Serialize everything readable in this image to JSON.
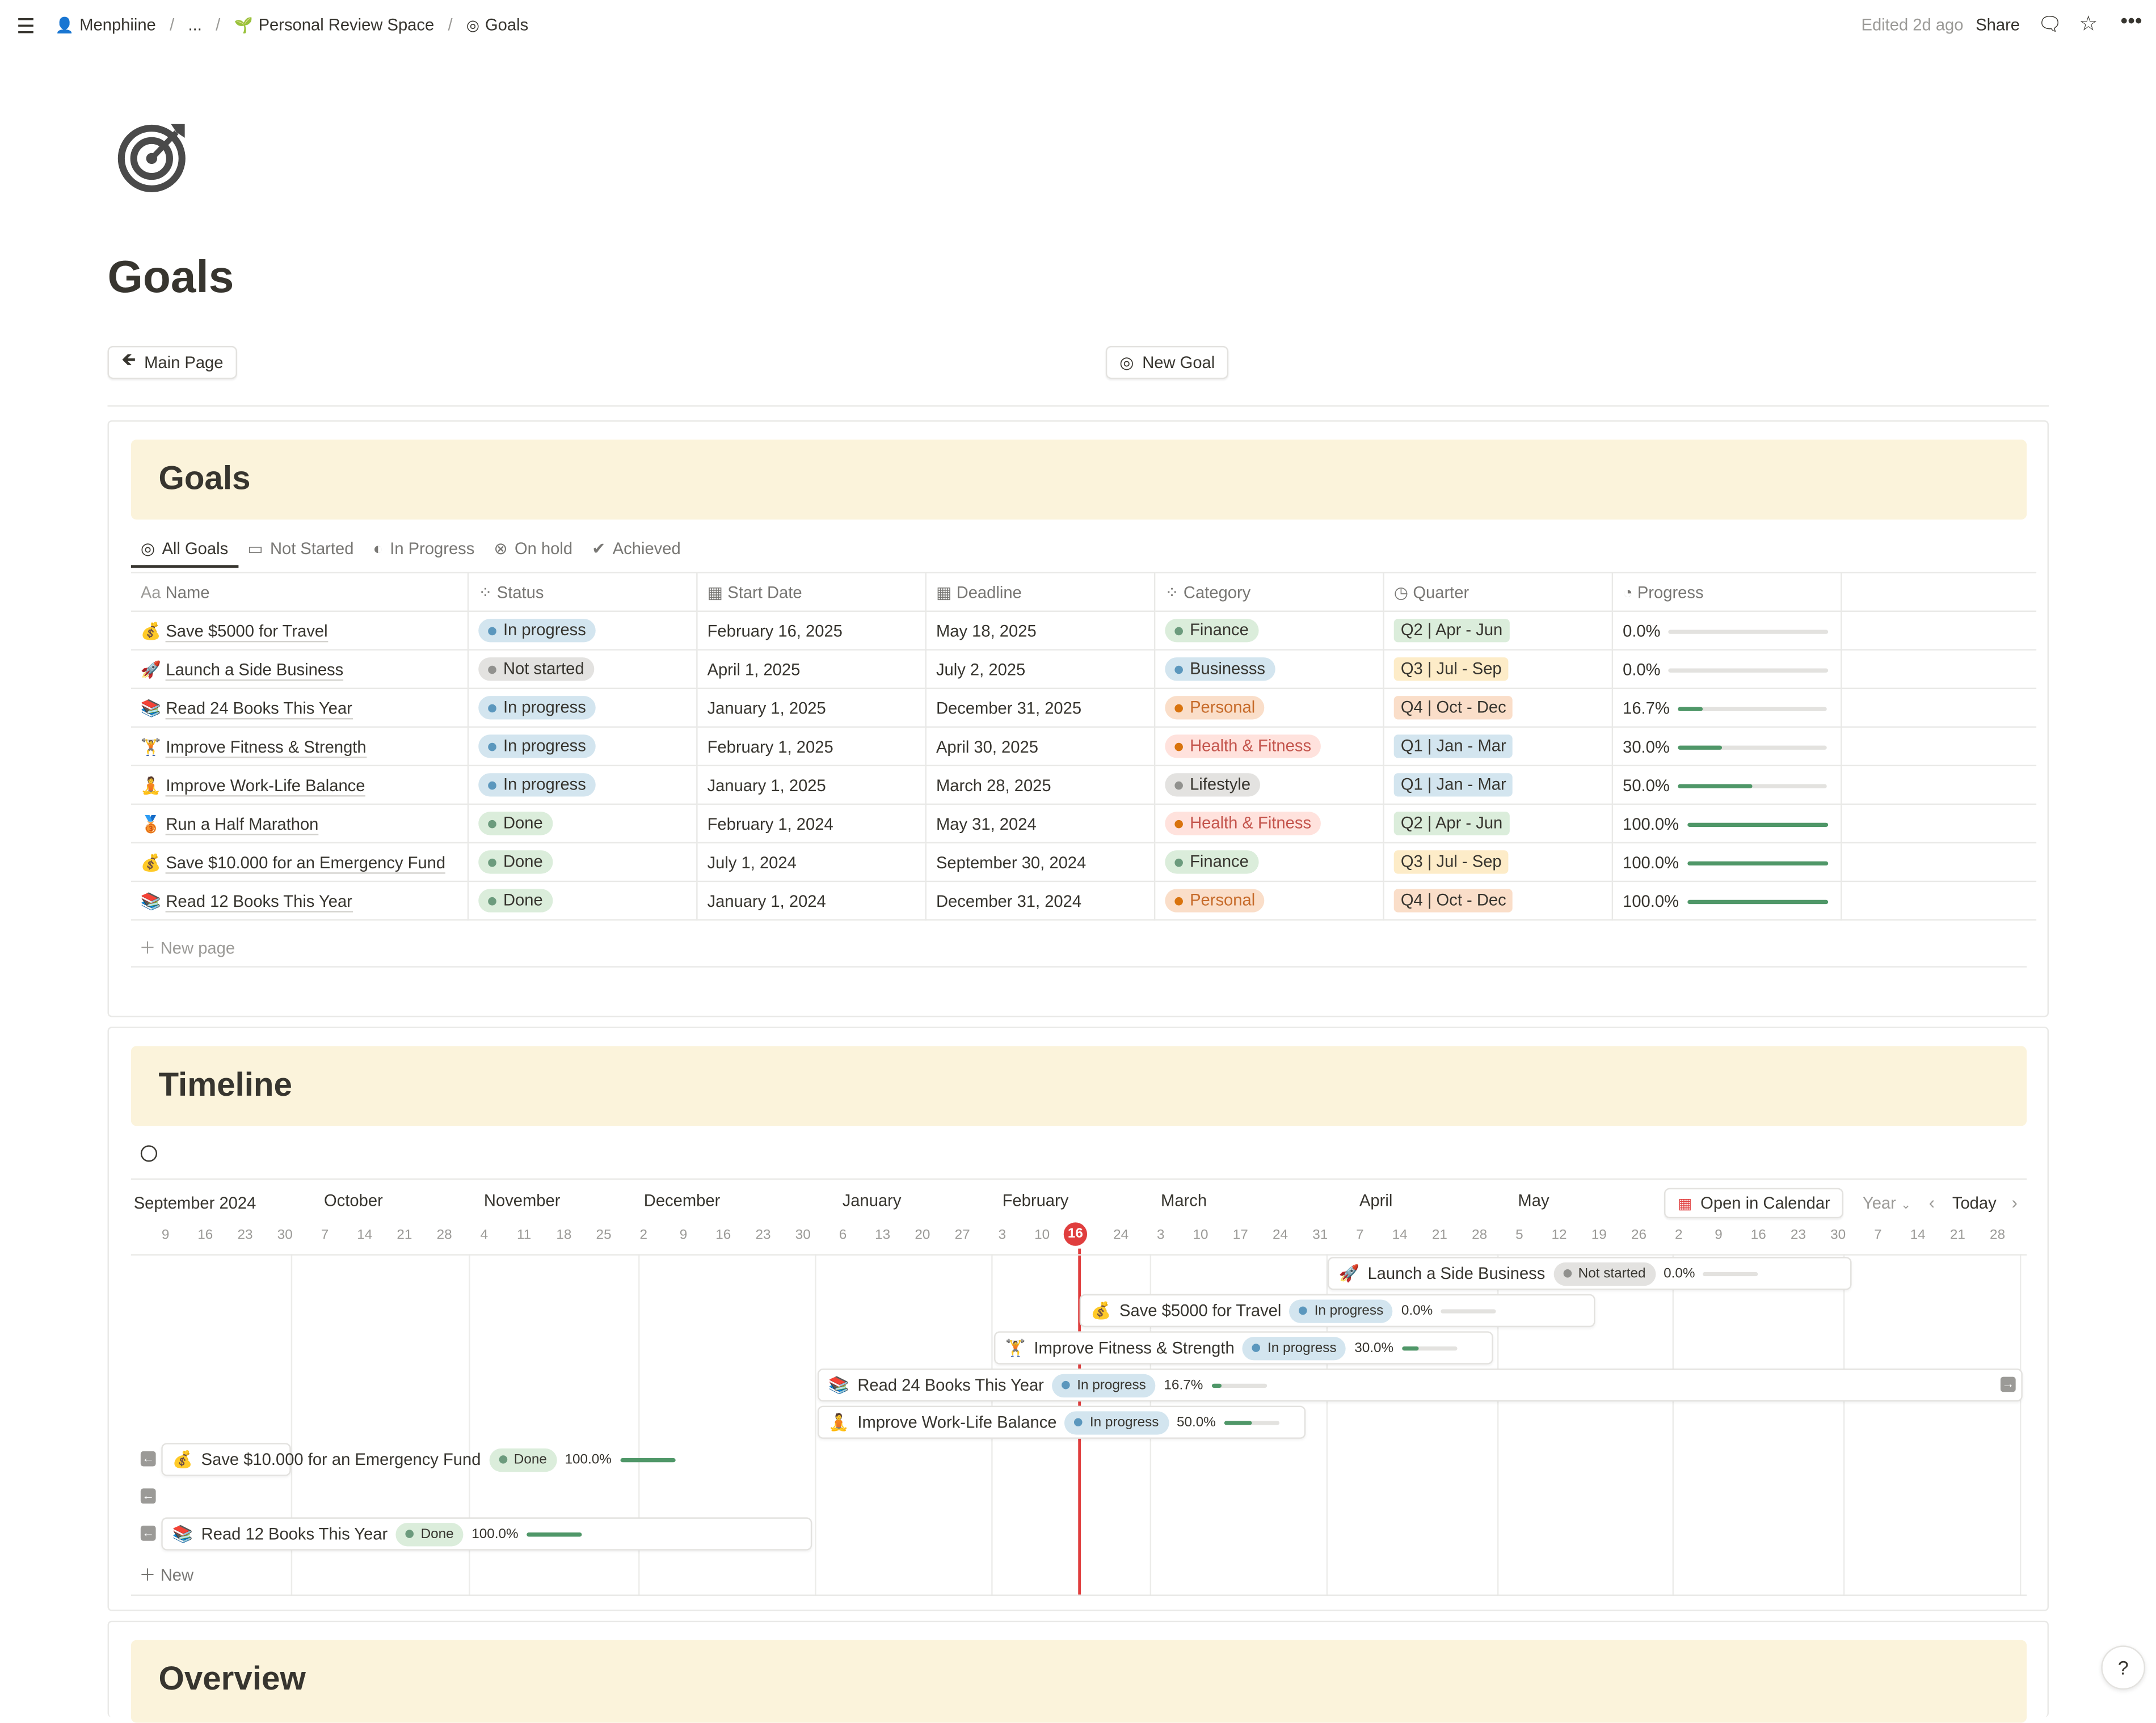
{
  "topbar": {
    "workspace": "Menphiine",
    "ellipsis": "...",
    "space": "Personal Review Space",
    "page": "Goals",
    "edited": "Edited 2d ago",
    "share": "Share"
  },
  "page": {
    "title": "Goals"
  },
  "buttons": {
    "main_page": "Main Page",
    "new_goal": "New Goal"
  },
  "goals_section": {
    "heading": "Goals",
    "tabs": [
      "All Goals",
      "Not Started",
      "In Progress",
      "On hold",
      "Achieved"
    ],
    "columns": [
      "Name",
      "Status",
      "Start Date",
      "Deadline",
      "Category",
      "Quarter",
      "Progress"
    ],
    "rows": [
      {
        "icon": "💰",
        "name": "Save $5000 for Travel",
        "status": "In progress",
        "start": "February 16, 2025",
        "deadline": "May 18, 2025",
        "category": "Finance",
        "quarter": "Q2 | Apr - Jun",
        "progress_label": "0.0%",
        "progress": 0.0
      },
      {
        "icon": "🚀",
        "name": "Launch a Side Business",
        "status": "Not started",
        "start": "April 1, 2025",
        "deadline": "July 2, 2025",
        "category": "Businesss",
        "quarter": "Q3 | Jul - Sep",
        "progress_label": "0.0%",
        "progress": 0.0
      },
      {
        "icon": "📚",
        "name": "Read 24 Books This Year",
        "status": "In progress",
        "start": "January 1, 2025",
        "deadline": "December 31, 2025",
        "category": "Personal",
        "quarter": "Q4 | Oct - Dec",
        "progress_label": "16.7%",
        "progress": 0.167
      },
      {
        "icon": "🏋",
        "name": "Improve Fitness & Strength",
        "status": "In progress",
        "start": "February 1, 2025",
        "deadline": "April 30, 2025",
        "category": "Health & Fitness",
        "quarter": "Q1 | Jan - Mar",
        "progress_label": "30.0%",
        "progress": 0.3
      },
      {
        "icon": "🧘",
        "name": "Improve Work-Life Balance",
        "status": "In progress",
        "start": "January 1, 2025",
        "deadline": "March 28, 2025",
        "category": "Lifestyle",
        "quarter": "Q1 | Jan - Mar",
        "progress_label": "50.0%",
        "progress": 0.5
      },
      {
        "icon": "🥉",
        "name": "Run a Half Marathon",
        "status": "Done",
        "start": "February 1, 2024",
        "deadline": "May 31, 2024",
        "category": "Health & Fitness",
        "quarter": "Q2 | Apr - Jun",
        "progress_label": "100.0%",
        "progress": 1.0
      },
      {
        "icon": "💰",
        "name": "Save $10.000 for an Emergency Fund",
        "status": "Done",
        "start": "July 1, 2024",
        "deadline": "September 30, 2024",
        "category": "Finance",
        "quarter": "Q3 | Jul - Sep",
        "progress_label": "100.0%",
        "progress": 1.0
      },
      {
        "icon": "📚",
        "name": "Read 12 Books This Year",
        "status": "Done",
        "start": "January 1, 2024",
        "deadline": "December 31, 2024",
        "category": "Personal",
        "quarter": "Q4 | Oct - Dec",
        "progress_label": "100.0%",
        "progress": 1.0
      }
    ],
    "new_page": "New page"
  },
  "timeline_section": {
    "heading": "Timeline",
    "months": [
      "September 2024",
      "October",
      "November",
      "December",
      "January",
      "February",
      "March",
      "April",
      "May"
    ],
    "days": [
      "9",
      "16",
      "23",
      "30",
      "7",
      "14",
      "21",
      "28",
      "4",
      "11",
      "18",
      "25",
      "2",
      "9",
      "16",
      "23",
      "30",
      "6",
      "13",
      "20",
      "27",
      "3",
      "10",
      "16",
      "24",
      "3",
      "10",
      "17",
      "24",
      "31",
      "7",
      "14",
      "21",
      "28",
      "5",
      "12",
      "19",
      "26",
      "2",
      "9",
      "16",
      "23",
      "30",
      "7",
      "14",
      "21",
      "28"
    ],
    "today_marker": "16",
    "open_calendar": "Open in Calendar",
    "year": "Year",
    "today": "Today",
    "items": [
      {
        "icon": "🚀",
        "name": "Launch a Side Business",
        "status": "Not started",
        "progress_label": "0.0%",
        "progress": 0.0
      },
      {
        "icon": "💰",
        "name": "Save $5000 for Travel",
        "status": "In progress",
        "progress_label": "0.0%",
        "progress": 0.0
      },
      {
        "icon": "🏋",
        "name": "Improve Fitness & Strength",
        "status": "In progress",
        "progress_label": "30.0%",
        "progress": 0.3
      },
      {
        "icon": "📚",
        "name": "Read 24 Books This Year",
        "status": "In progress",
        "progress_label": "16.7%",
        "progress": 0.167
      },
      {
        "icon": "🧘",
        "name": "Improve Work-Life Balance",
        "status": "In progress",
        "progress_label": "50.0%",
        "progress": 0.5
      },
      {
        "icon": "💰",
        "name": "Save $10.000 for an Emergency Fund",
        "status": "Done",
        "progress_label": "100.0%",
        "progress": 1.0
      },
      {
        "icon": "📚",
        "name": "Read 12 Books This Year",
        "status": "Done",
        "progress_label": "100.0%",
        "progress": 1.0
      }
    ],
    "new": "New"
  },
  "overview_section": {
    "heading": "Overview"
  },
  "colors": {
    "status_in_progress_bg": "#d3e5ef",
    "status_in_progress_dot": "#5b97bd",
    "status_not_started_bg": "#e3e2e0",
    "status_not_started_dot": "#91918e",
    "status_done_bg": "#dbeddb",
    "status_done_dot": "#6c9b7d",
    "finance": "#dbeddb",
    "business": "#d3e5ef",
    "personal": "#fadec9",
    "health": "#ffe2dd",
    "lifestyle": "#e3e2e0",
    "q1": "#d3e5ef",
    "q2": "#dbeddb",
    "q3": "#fdecc8",
    "q4": "#fadec9",
    "banner": "#fbf3db",
    "progress": "#4f9768",
    "today": "#e03e3e"
  }
}
